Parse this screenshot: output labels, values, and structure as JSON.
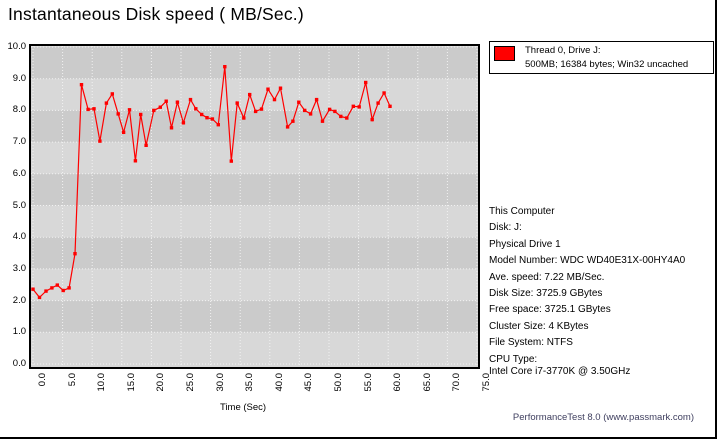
{
  "title": "Instantaneous Disk speed ( MB/Sec.)",
  "legend": {
    "line1": "Thread 0, Drive J:",
    "line2": "500MB; 16384 bytes; Win32 uncached",
    "swatch_color": "#ff0000"
  },
  "info_panel": {
    "lines": [
      "This Computer",
      "Disk: J:",
      "Physical Drive 1",
      "Model Number: WDC WD40E31X-00HY4A0",
      "Ave. speed: 7.22 MB/Sec.",
      "Disk Size: 3725.9 GBytes",
      "Free space: 3725.1 GBytes",
      "Cluster Size: 4 KBytes",
      "File System: NTFS",
      "CPU Type:",
      "Intel Core i7-3770K @ 3.50GHz"
    ]
  },
  "footer": "PerformanceTest 8.0 (www.passmark.com)",
  "colors": {
    "line": "#ff0000",
    "band_dark": "#cbcbcb",
    "band_light": "#d8d8d8",
    "gridline": "#f2f2f2",
    "frame": "#000000"
  },
  "chart_data": {
    "type": "line",
    "title": "Instantaneous Disk speed ( MB/Sec.)",
    "xlabel": "Time (Sec)",
    "ylabel": "",
    "xlim": [
      0,
      75
    ],
    "ylim": [
      0,
      10
    ],
    "grid": true,
    "legend_position": "top-right",
    "x_tick_labels": [
      "0.0",
      "5.0",
      "10.0",
      "15.0",
      "20.0",
      "25.0",
      "30.0",
      "35.0",
      "40.0",
      "45.0",
      "50.0",
      "55.0",
      "60.0",
      "65.0",
      "70.0",
      "75.0"
    ],
    "x_tick_values": [
      0,
      5,
      10,
      15,
      20,
      25,
      30,
      35,
      40,
      45,
      50,
      55,
      60,
      65,
      70,
      75
    ],
    "y_tick_labels": [
      "0.0",
      "1.0",
      "2.0",
      "3.0",
      "4.0",
      "5.0",
      "6.0",
      "7.0",
      "8.0",
      "9.0",
      "10.0"
    ],
    "y_tick_values": [
      0,
      1,
      2,
      3,
      4,
      5,
      6,
      7,
      8,
      9,
      10
    ],
    "series": [
      {
        "name": "Thread 0, Drive J: 500MB; 16384 bytes; Win32 uncached",
        "color": "#ff0000",
        "x": [
          0.0,
          1.1,
          2.2,
          3.2,
          4.1,
          5.1,
          6.1,
          7.1,
          8.2,
          9.3,
          10.3,
          11.3,
          12.4,
          13.4,
          14.4,
          15.3,
          16.3,
          17.3,
          18.2,
          19.1,
          20.4,
          21.5,
          22.5,
          23.4,
          24.4,
          25.4,
          26.6,
          27.5,
          28.5,
          29.4,
          30.3,
          31.3,
          32.4,
          33.5,
          34.5,
          35.6,
          36.6,
          37.6,
          38.6,
          39.7,
          40.8,
          41.8,
          43.0,
          43.9,
          44.9,
          45.9,
          46.9,
          47.9,
          48.9,
          50.1,
          51.0,
          52.0,
          53.0,
          54.1,
          55.1,
          56.2,
          57.3,
          58.3,
          59.3,
          60.3
        ],
        "y": [
          2.36,
          2.1,
          2.3,
          2.4,
          2.49,
          2.32,
          2.4,
          3.48,
          8.81,
          8.03,
          8.05,
          7.03,
          8.23,
          8.52,
          7.89,
          7.31,
          8.02,
          6.41,
          7.87,
          6.9,
          8.0,
          8.1,
          8.29,
          7.45,
          8.26,
          7.61,
          8.34,
          8.05,
          7.87,
          7.77,
          7.73,
          7.55,
          9.38,
          6.4,
          8.23,
          7.76,
          8.5,
          7.97,
          8.04,
          8.67,
          8.34,
          8.7,
          7.48,
          7.66,
          8.26,
          8.0,
          7.89,
          8.34,
          7.66,
          8.03,
          7.97,
          7.81,
          7.76,
          8.13,
          8.11,
          8.88,
          7.71,
          8.23,
          8.55,
          8.13
        ]
      }
    ]
  }
}
